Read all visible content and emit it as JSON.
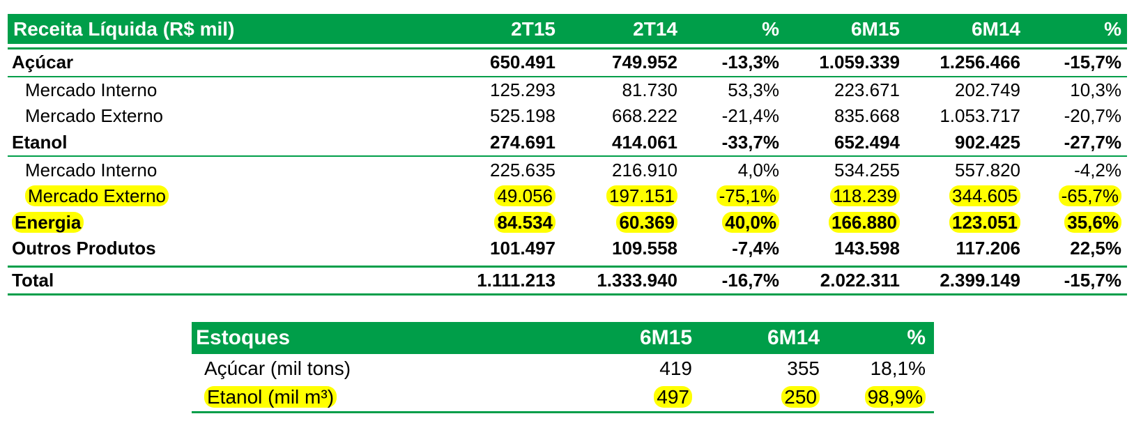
{
  "colors": {
    "header_green": "#009e49",
    "highlight": "#ffff00"
  },
  "revenue": {
    "header": [
      "Receita Líquida (R$ mil)",
      "2T15",
      "2T14",
      "%",
      "6M15",
      "6M14",
      "%"
    ],
    "rows": [
      {
        "label": "Açúcar",
        "values": [
          "650.491",
          "749.952",
          "-13,3%",
          "1.059.339",
          "1.256.466",
          "-15,7%"
        ],
        "bold": true
      },
      {
        "label": "Mercado Interno",
        "values": [
          "125.293",
          "81.730",
          "53,3%",
          "223.671",
          "202.749",
          "10,3%"
        ]
      },
      {
        "label": "Mercado Externo",
        "values": [
          "525.198",
          "668.222",
          "-21,4%",
          "835.668",
          "1.053.717",
          "-20,7%"
        ]
      },
      {
        "label": "Etanol",
        "values": [
          "274.691",
          "414.061",
          "-33,7%",
          "652.494",
          "902.425",
          "-27,7%"
        ],
        "bold": true
      },
      {
        "label": "Mercado Interno",
        "values": [
          "225.635",
          "216.910",
          "4,0%",
          "534.255",
          "557.820",
          "-4,2%"
        ]
      },
      {
        "label": "Mercado Externo",
        "values": [
          "49.056",
          "197.151",
          "-75,1%",
          "118.239",
          "344.605",
          "-65,7%"
        ],
        "highlighted": true
      },
      {
        "label": "Energia",
        "values": [
          "84.534",
          "60.369",
          "40,0%",
          "166.880",
          "123.051",
          "35,6%"
        ],
        "bold": true,
        "highlighted": true
      },
      {
        "label": "Outros Produtos",
        "values": [
          "101.497",
          "109.558",
          "-7,4%",
          "143.598",
          "117.206",
          "22,5%"
        ],
        "bold": true
      }
    ],
    "total": {
      "label": "Total",
      "values": [
        "1.111.213",
        "1.333.940",
        "-16,7%",
        "2.022.311",
        "2.399.149",
        "-15,7%"
      ]
    }
  },
  "inventory": {
    "header": [
      "Estoques",
      "6M15",
      "6M14",
      "%"
    ],
    "rows": [
      {
        "label": "Açúcar (mil tons)",
        "values": [
          "419",
          "355",
          "18,1%"
        ]
      },
      {
        "label": "Etanol (mil m³)",
        "values": [
          "497",
          "250",
          "98,9%"
        ],
        "highlighted": true
      }
    ]
  }
}
